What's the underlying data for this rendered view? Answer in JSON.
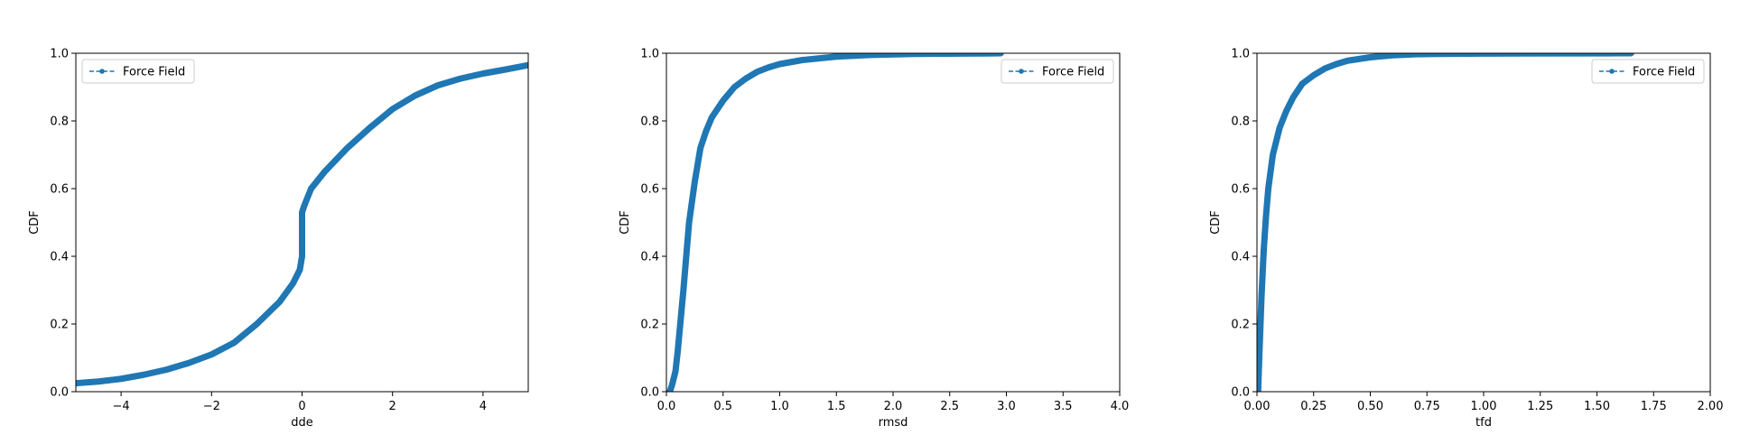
{
  "chart_data": [
    {
      "type": "line",
      "xlabel": "dde",
      "ylabel": "CDF",
      "xlim": [
        -5,
        5
      ],
      "ylim": [
        0,
        1
      ],
      "xticks": [
        -4,
        -2,
        0,
        2,
        4
      ],
      "xtick_labels": [
        "−4",
        "−2",
        "0",
        "2",
        "4"
      ],
      "yticks": [
        0,
        0.2,
        0.4,
        0.6,
        0.8,
        1.0
      ],
      "ytick_labels": [
        "0.0",
        "0.2",
        "0.4",
        "0.6",
        "0.8",
        "1.0"
      ],
      "legend_position": "upper left",
      "series": [
        {
          "name": "Force Field",
          "color": "#1f77b4",
          "x": [
            -5,
            -4.5,
            -4,
            -3.5,
            -3,
            -2.5,
            -2,
            -1.5,
            -1,
            -0.5,
            -0.2,
            -0.05,
            0,
            0,
            0.05,
            0.2,
            0.5,
            1,
            1.5,
            2,
            2.5,
            3,
            3.5,
            4,
            4.5,
            5
          ],
          "y": [
            0.025,
            0.03,
            0.038,
            0.05,
            0.065,
            0.085,
            0.11,
            0.145,
            0.2,
            0.265,
            0.32,
            0.36,
            0.4,
            0.53,
            0.55,
            0.6,
            0.65,
            0.72,
            0.78,
            0.835,
            0.875,
            0.905,
            0.925,
            0.94,
            0.952,
            0.965
          ]
        }
      ]
    },
    {
      "type": "line",
      "xlabel": "rmsd",
      "ylabel": "CDF",
      "xlim": [
        0,
        4
      ],
      "ylim": [
        0,
        1
      ],
      "xticks": [
        0,
        0.5,
        1.0,
        1.5,
        2.0,
        2.5,
        3.0,
        3.5,
        4.0
      ],
      "xtick_labels": [
        "0.0",
        "0.5",
        "1.0",
        "1.5",
        "2.0",
        "2.5",
        "3.0",
        "3.5",
        "4.0"
      ],
      "yticks": [
        0,
        0.2,
        0.4,
        0.6,
        0.8,
        1.0
      ],
      "ytick_labels": [
        "0.0",
        "0.2",
        "0.4",
        "0.6",
        "0.8",
        "1.0"
      ],
      "legend_position": "upper right",
      "series": [
        {
          "name": "Force Field",
          "color": "#1f77b4",
          "x": [
            0.03,
            0.05,
            0.08,
            0.1,
            0.15,
            0.2,
            0.25,
            0.3,
            0.35,
            0.4,
            0.5,
            0.6,
            0.7,
            0.8,
            0.9,
            1.0,
            1.2,
            1.5,
            1.8,
            2.2,
            2.6,
            2.8,
            2.9,
            2.95
          ],
          "y": [
            0.0,
            0.02,
            0.06,
            0.12,
            0.3,
            0.5,
            0.62,
            0.72,
            0.77,
            0.81,
            0.86,
            0.9,
            0.925,
            0.945,
            0.958,
            0.968,
            0.98,
            0.99,
            0.995,
            0.998,
            0.999,
            0.9995,
            0.9998,
            1.0
          ]
        }
      ]
    },
    {
      "type": "line",
      "xlabel": "tfd",
      "ylabel": "CDF",
      "xlim": [
        0,
        2
      ],
      "ylim": [
        0,
        1
      ],
      "xticks": [
        0,
        0.25,
        0.5,
        0.75,
        1.0,
        1.25,
        1.5,
        1.75,
        2.0
      ],
      "xtick_labels": [
        "0.00",
        "0.25",
        "0.50",
        "0.75",
        "1.00",
        "1.25",
        "1.50",
        "1.75",
        "2.00"
      ],
      "yticks": [
        0,
        0.2,
        0.4,
        0.6,
        0.8,
        1.0
      ],
      "ytick_labels": [
        "0.0",
        "0.2",
        "0.4",
        "0.6",
        "0.8",
        "1.0"
      ],
      "legend_position": "upper right",
      "series": [
        {
          "name": "Force Field",
          "color": "#1f77b4",
          "x": [
            0.005,
            0.01,
            0.02,
            0.03,
            0.04,
            0.05,
            0.07,
            0.1,
            0.13,
            0.16,
            0.2,
            0.25,
            0.3,
            0.35,
            0.4,
            0.5,
            0.6,
            0.7,
            0.8,
            1.0,
            1.15,
            1.5,
            1.55,
            1.6,
            1.65
          ],
          "y": [
            0.0,
            0.1,
            0.28,
            0.42,
            0.52,
            0.6,
            0.7,
            0.78,
            0.83,
            0.87,
            0.91,
            0.935,
            0.955,
            0.968,
            0.978,
            0.988,
            0.994,
            0.997,
            0.998,
            0.999,
            0.9995,
            0.9997,
            0.9998,
            0.9999,
            1.0
          ]
        }
      ]
    }
  ]
}
